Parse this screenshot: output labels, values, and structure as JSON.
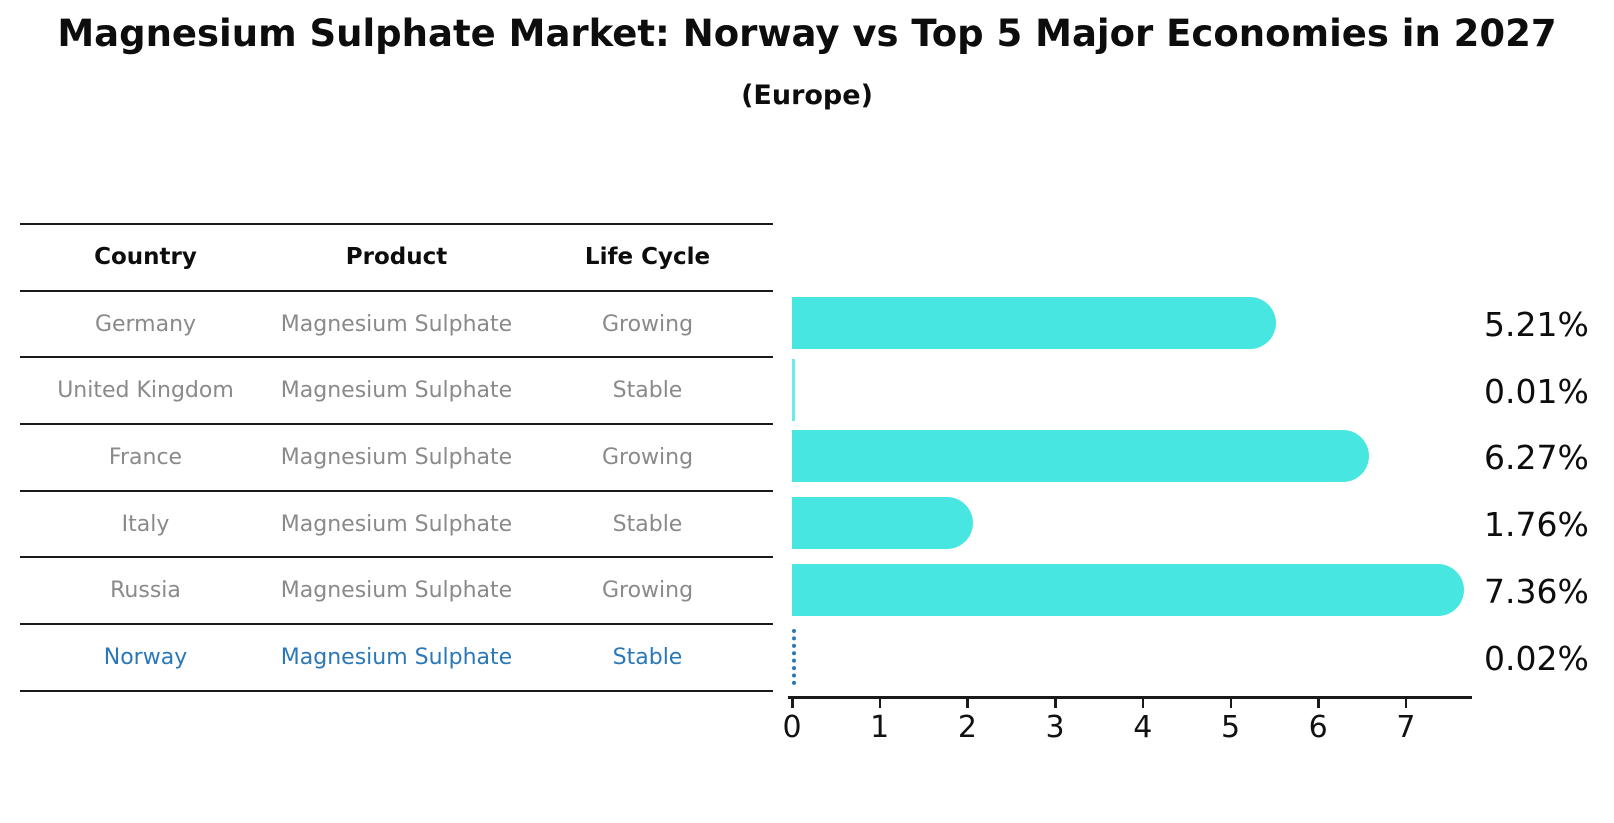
{
  "title": "Magnesium Sulphate Market: Norway vs Top 5 Major Economies in 2027",
  "subtitle": "(Europe)",
  "table": {
    "headers": [
      "Country",
      "Product",
      "Life Cycle"
    ],
    "rows": [
      {
        "country": "Germany",
        "product": "Magnesium Sulphate",
        "life_cycle": "Growing",
        "highlighted": false
      },
      {
        "country": "United Kingdom",
        "product": "Magnesium Sulphate",
        "life_cycle": "Stable",
        "highlighted": false
      },
      {
        "country": "France",
        "product": "Magnesium Sulphate",
        "life_cycle": "Growing",
        "highlighted": false
      },
      {
        "country": "Italy",
        "product": "Magnesium Sulphate",
        "life_cycle": "Stable",
        "highlighted": false
      },
      {
        "country": "Russia",
        "product": "Magnesium Sulphate",
        "life_cycle": "Growing",
        "highlighted": false
      },
      {
        "country": "Norway",
        "product": "Magnesium Sulphate",
        "life_cycle": "Stable",
        "highlighted": true
      }
    ]
  },
  "chart_data": {
    "type": "bar",
    "orientation": "horizontal",
    "title": "Magnesium Sulphate Market: Norway vs Top 5 Major Economies in 2027",
    "subtitle": "(Europe)",
    "categories": [
      "Germany",
      "United Kingdom",
      "France",
      "Italy",
      "Russia",
      "Norway"
    ],
    "values": [
      5.21,
      0.01,
      6.27,
      1.76,
      7.36,
      0.02
    ],
    "value_labels": [
      "5.21%",
      "0.01%",
      "6.27%",
      "1.76%",
      "7.36%",
      "0.02%"
    ],
    "x_ticks": [
      "0",
      "1",
      "2",
      "3",
      "4",
      "5",
      "6",
      "7"
    ],
    "xlim": [
      0,
      7.75
    ],
    "grid": false,
    "legend": false,
    "bar_color": "#48E6E0",
    "highlight_index": 5,
    "highlight_color": "#2b78b8",
    "highlight_style": "dotted-outline"
  },
  "colors": {
    "background": "#ffffff",
    "heading_text": "#0d0d0d",
    "table_text": "#8a8a8a",
    "table_line": "#1a1a1a",
    "axis": "#1a1a1a",
    "bar": "#48E6E0",
    "highlight": "#2b78b8"
  }
}
